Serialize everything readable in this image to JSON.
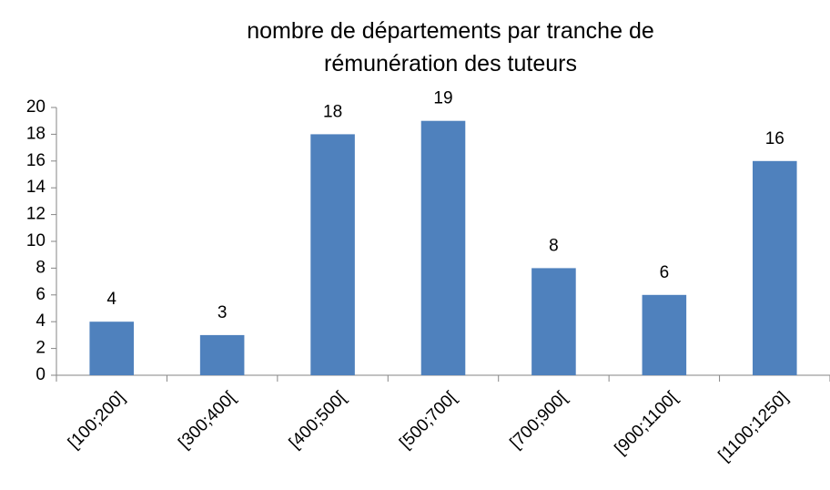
{
  "chart_data": {
    "type": "bar",
    "title": "nombre de départements par tranche de rémunération des tuteurs",
    "categories": [
      "[100;200]",
      "[300;400[",
      "[400;500[",
      "[500;700[",
      "[700;900[",
      "[900;1100[",
      "[1100;1250]"
    ],
    "values": [
      4,
      3,
      18,
      19,
      8,
      6,
      16
    ],
    "color": "#4f81bd",
    "ylim": [
      0,
      20
    ],
    "yticks": [
      0,
      2,
      4,
      6,
      8,
      10,
      12,
      14,
      16,
      18,
      20
    ],
    "grid": false,
    "data_labels": true
  }
}
